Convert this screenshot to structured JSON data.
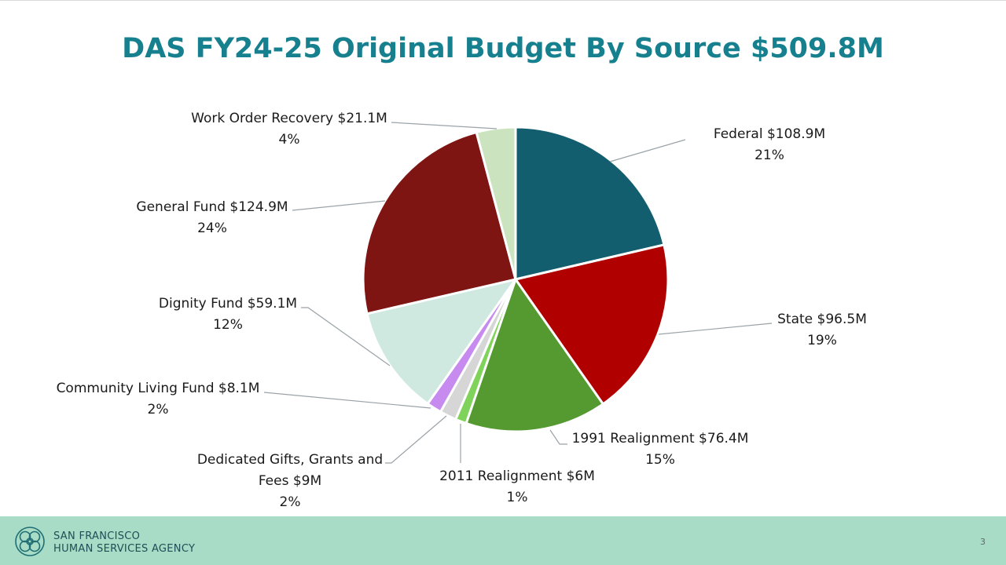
{
  "title": "DAS FY24-25 Original Budget By Source $509.8M",
  "chart_data": {
    "type": "pie",
    "title": "DAS FY24-25 Original Budget By Source $509.8M",
    "slices": [
      {
        "name": "Federal",
        "amount_label": "$108.9M",
        "value": 108.9,
        "percent": "21%",
        "color": "#125e6f"
      },
      {
        "name": "State",
        "amount_label": "$96.5M",
        "value": 96.5,
        "percent": "19%",
        "color": "#b00000"
      },
      {
        "name": "1991 Realignment",
        "amount_label": "$76.4M",
        "value": 76.4,
        "percent": "15%",
        "color": "#559a31"
      },
      {
        "name": "2011 Realignment",
        "amount_label": "$6M",
        "value": 6,
        "percent": "1%",
        "color": "#7fd35a"
      },
      {
        "name": "Dedicated Gifts, Grants and Fees",
        "amount_label": "$9M",
        "value": 9,
        "percent": "2%",
        "color": "#d6d6d6"
      },
      {
        "name": "Community Living Fund",
        "amount_label": "$8.1M",
        "value": 8.1,
        "percent": "2%",
        "color": "#c78bf0"
      },
      {
        "name": "Dignity Fund",
        "amount_label": "$59.1M",
        "value": 59.1,
        "percent": "12%",
        "color": "#cfe9e1"
      },
      {
        "name": "General Fund",
        "amount_label": "$124.9M",
        "value": 124.9,
        "percent": "24%",
        "color": "#7f1512"
      },
      {
        "name": "Work Order Recovery",
        "amount_label": "$21.1M",
        "value": 21.1,
        "percent": "4%",
        "color": "#cbe4bf"
      }
    ],
    "labels": [
      {
        "line1": "Federal $108.9M",
        "line2": "21%"
      },
      {
        "line1": "State $96.5M",
        "line2": "19%"
      },
      {
        "line1": "1991 Realignment $76.4M",
        "line2": "15%"
      },
      {
        "line1": "2011 Realignment $6M",
        "line2": "1%"
      },
      {
        "line1": "Dedicated Gifts, Grants and",
        "line2": "Fees $9M",
        "line3": "2%"
      },
      {
        "line1": "Community Living Fund $8.1M",
        "line2": "2%"
      },
      {
        "line1": "Dignity Fund $59.1M",
        "line2": "12%"
      },
      {
        "line1": "General Fund $124.9M",
        "line2": "24%"
      },
      {
        "line1": "Work Order Recovery $21.1M",
        "line2": "4%"
      }
    ]
  },
  "footer": {
    "org_line1": "SAN FRANCISCO",
    "org_line2": "HUMAN SERVICES AGENCY",
    "page_number": "3"
  }
}
